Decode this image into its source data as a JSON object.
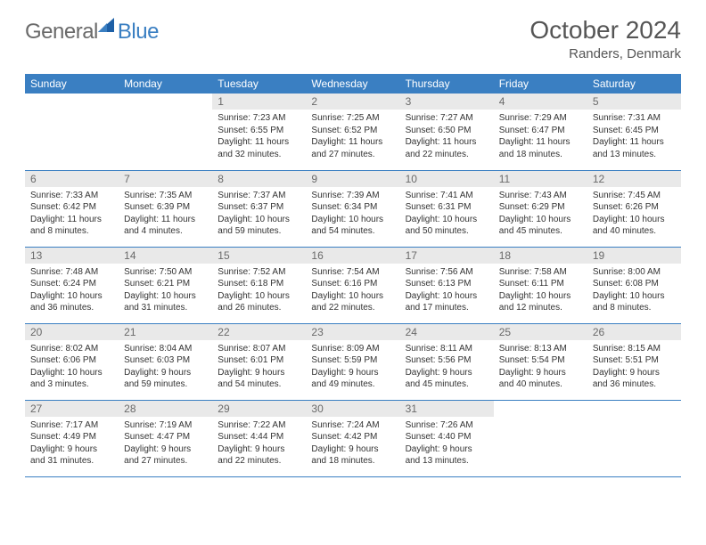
{
  "brand": {
    "general": "General",
    "blue": "Blue"
  },
  "header": {
    "title": "October 2024",
    "location": "Randers, Denmark"
  },
  "colors": {
    "accent": "#3a7fc2",
    "header_row_bg": "#3a7fc2",
    "header_row_text": "#ffffff",
    "daynum_bg": "#e9e9e9",
    "daynum_text": "#6a6a6a",
    "body_text": "#333333",
    "title_text": "#555555",
    "background": "#ffffff"
  },
  "calendar": {
    "weekdays": [
      "Sunday",
      "Monday",
      "Tuesday",
      "Wednesday",
      "Thursday",
      "Friday",
      "Saturday"
    ],
    "cell_font_size_pt": 7.5,
    "header_font_size_pt": 9,
    "weeks": [
      [
        null,
        null,
        {
          "day": "1",
          "sunrise": "Sunrise: 7:23 AM",
          "sunset": "Sunset: 6:55 PM",
          "daylight": "Daylight: 11 hours and 32 minutes."
        },
        {
          "day": "2",
          "sunrise": "Sunrise: 7:25 AM",
          "sunset": "Sunset: 6:52 PM",
          "daylight": "Daylight: 11 hours and 27 minutes."
        },
        {
          "day": "3",
          "sunrise": "Sunrise: 7:27 AM",
          "sunset": "Sunset: 6:50 PM",
          "daylight": "Daylight: 11 hours and 22 minutes."
        },
        {
          "day": "4",
          "sunrise": "Sunrise: 7:29 AM",
          "sunset": "Sunset: 6:47 PM",
          "daylight": "Daylight: 11 hours and 18 minutes."
        },
        {
          "day": "5",
          "sunrise": "Sunrise: 7:31 AM",
          "sunset": "Sunset: 6:45 PM",
          "daylight": "Daylight: 11 hours and 13 minutes."
        }
      ],
      [
        {
          "day": "6",
          "sunrise": "Sunrise: 7:33 AM",
          "sunset": "Sunset: 6:42 PM",
          "daylight": "Daylight: 11 hours and 8 minutes."
        },
        {
          "day": "7",
          "sunrise": "Sunrise: 7:35 AM",
          "sunset": "Sunset: 6:39 PM",
          "daylight": "Daylight: 11 hours and 4 minutes."
        },
        {
          "day": "8",
          "sunrise": "Sunrise: 7:37 AM",
          "sunset": "Sunset: 6:37 PM",
          "daylight": "Daylight: 10 hours and 59 minutes."
        },
        {
          "day": "9",
          "sunrise": "Sunrise: 7:39 AM",
          "sunset": "Sunset: 6:34 PM",
          "daylight": "Daylight: 10 hours and 54 minutes."
        },
        {
          "day": "10",
          "sunrise": "Sunrise: 7:41 AM",
          "sunset": "Sunset: 6:31 PM",
          "daylight": "Daylight: 10 hours and 50 minutes."
        },
        {
          "day": "11",
          "sunrise": "Sunrise: 7:43 AM",
          "sunset": "Sunset: 6:29 PM",
          "daylight": "Daylight: 10 hours and 45 minutes."
        },
        {
          "day": "12",
          "sunrise": "Sunrise: 7:45 AM",
          "sunset": "Sunset: 6:26 PM",
          "daylight": "Daylight: 10 hours and 40 minutes."
        }
      ],
      [
        {
          "day": "13",
          "sunrise": "Sunrise: 7:48 AM",
          "sunset": "Sunset: 6:24 PM",
          "daylight": "Daylight: 10 hours and 36 minutes."
        },
        {
          "day": "14",
          "sunrise": "Sunrise: 7:50 AM",
          "sunset": "Sunset: 6:21 PM",
          "daylight": "Daylight: 10 hours and 31 minutes."
        },
        {
          "day": "15",
          "sunrise": "Sunrise: 7:52 AM",
          "sunset": "Sunset: 6:18 PM",
          "daylight": "Daylight: 10 hours and 26 minutes."
        },
        {
          "day": "16",
          "sunrise": "Sunrise: 7:54 AM",
          "sunset": "Sunset: 6:16 PM",
          "daylight": "Daylight: 10 hours and 22 minutes."
        },
        {
          "day": "17",
          "sunrise": "Sunrise: 7:56 AM",
          "sunset": "Sunset: 6:13 PM",
          "daylight": "Daylight: 10 hours and 17 minutes."
        },
        {
          "day": "18",
          "sunrise": "Sunrise: 7:58 AM",
          "sunset": "Sunset: 6:11 PM",
          "daylight": "Daylight: 10 hours and 12 minutes."
        },
        {
          "day": "19",
          "sunrise": "Sunrise: 8:00 AM",
          "sunset": "Sunset: 6:08 PM",
          "daylight": "Daylight: 10 hours and 8 minutes."
        }
      ],
      [
        {
          "day": "20",
          "sunrise": "Sunrise: 8:02 AM",
          "sunset": "Sunset: 6:06 PM",
          "daylight": "Daylight: 10 hours and 3 minutes."
        },
        {
          "day": "21",
          "sunrise": "Sunrise: 8:04 AM",
          "sunset": "Sunset: 6:03 PM",
          "daylight": "Daylight: 9 hours and 59 minutes."
        },
        {
          "day": "22",
          "sunrise": "Sunrise: 8:07 AM",
          "sunset": "Sunset: 6:01 PM",
          "daylight": "Daylight: 9 hours and 54 minutes."
        },
        {
          "day": "23",
          "sunrise": "Sunrise: 8:09 AM",
          "sunset": "Sunset: 5:59 PM",
          "daylight": "Daylight: 9 hours and 49 minutes."
        },
        {
          "day": "24",
          "sunrise": "Sunrise: 8:11 AM",
          "sunset": "Sunset: 5:56 PM",
          "daylight": "Daylight: 9 hours and 45 minutes."
        },
        {
          "day": "25",
          "sunrise": "Sunrise: 8:13 AM",
          "sunset": "Sunset: 5:54 PM",
          "daylight": "Daylight: 9 hours and 40 minutes."
        },
        {
          "day": "26",
          "sunrise": "Sunrise: 8:15 AM",
          "sunset": "Sunset: 5:51 PM",
          "daylight": "Daylight: 9 hours and 36 minutes."
        }
      ],
      [
        {
          "day": "27",
          "sunrise": "Sunrise: 7:17 AM",
          "sunset": "Sunset: 4:49 PM",
          "daylight": "Daylight: 9 hours and 31 minutes."
        },
        {
          "day": "28",
          "sunrise": "Sunrise: 7:19 AM",
          "sunset": "Sunset: 4:47 PM",
          "daylight": "Daylight: 9 hours and 27 minutes."
        },
        {
          "day": "29",
          "sunrise": "Sunrise: 7:22 AM",
          "sunset": "Sunset: 4:44 PM",
          "daylight": "Daylight: 9 hours and 22 minutes."
        },
        {
          "day": "30",
          "sunrise": "Sunrise: 7:24 AM",
          "sunset": "Sunset: 4:42 PM",
          "daylight": "Daylight: 9 hours and 18 minutes."
        },
        {
          "day": "31",
          "sunrise": "Sunrise: 7:26 AM",
          "sunset": "Sunset: 4:40 PM",
          "daylight": "Daylight: 9 hours and 13 minutes."
        },
        null,
        null
      ]
    ]
  }
}
